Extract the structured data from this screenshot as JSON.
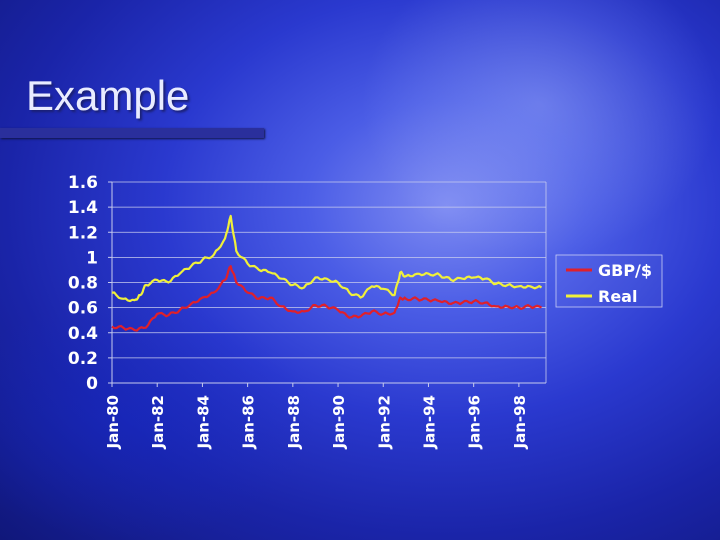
{
  "slide": {
    "title": "Example"
  },
  "chart_data": {
    "type": "line",
    "xlabel": "",
    "ylabel": "",
    "ylim": [
      0,
      1.6
    ],
    "yticks": [
      "0",
      "0.2",
      "0.4",
      "0.6",
      "0.8",
      "1",
      "1.2",
      "1.4",
      "1.6"
    ],
    "xticks": [
      "Jan-80",
      "Jan-82",
      "Jan-84",
      "Jan-86",
      "Jan-88",
      "Jan-90",
      "Jan-92",
      "Jan-94",
      "Jan-96",
      "Jan-98"
    ],
    "xtick_years": [
      1980,
      1982,
      1984,
      1986,
      1988,
      1990,
      1992,
      1994,
      1996,
      1998
    ],
    "xlim": [
      1980,
      1999.2
    ],
    "grid": "horizontal",
    "legend_placement": "right",
    "series": [
      {
        "name": "GBP/$",
        "color": "#e0202a",
        "points": [
          [
            1980,
            0.45
          ],
          [
            1980.5,
            0.44
          ],
          [
            1981,
            0.42
          ],
          [
            1981.5,
            0.44
          ],
          [
            1982,
            0.55
          ],
          [
            1982.5,
            0.54
          ],
          [
            1983,
            0.58
          ],
          [
            1983.5,
            0.63
          ],
          [
            1984,
            0.68
          ],
          [
            1984.5,
            0.72
          ],
          [
            1985,
            0.82
          ],
          [
            1985.25,
            0.93
          ],
          [
            1985.5,
            0.8
          ],
          [
            1986,
            0.72
          ],
          [
            1986.5,
            0.67
          ],
          [
            1987,
            0.68
          ],
          [
            1987.5,
            0.61
          ],
          [
            1988,
            0.57
          ],
          [
            1988.5,
            0.57
          ],
          [
            1989,
            0.62
          ],
          [
            1989.5,
            0.61
          ],
          [
            1990,
            0.58
          ],
          [
            1990.5,
            0.52
          ],
          [
            1991,
            0.53
          ],
          [
            1991.5,
            0.57
          ],
          [
            1992,
            0.55
          ],
          [
            1992.5,
            0.56
          ],
          [
            1992.75,
            0.68
          ],
          [
            1993,
            0.67
          ],
          [
            1993.5,
            0.67
          ],
          [
            1994,
            0.66
          ],
          [
            1994.5,
            0.65
          ],
          [
            1995,
            0.63
          ],
          [
            1995.5,
            0.64
          ],
          [
            1996,
            0.65
          ],
          [
            1996.5,
            0.64
          ],
          [
            1997,
            0.61
          ],
          [
            1997.5,
            0.61
          ],
          [
            1998,
            0.6
          ],
          [
            1998.5,
            0.61
          ],
          [
            1999,
            0.6
          ]
        ]
      },
      {
        "name": "Real",
        "color": "#f0f03a",
        "points": [
          [
            1980,
            0.72
          ],
          [
            1980.5,
            0.67
          ],
          [
            1981,
            0.66
          ],
          [
            1981.25,
            0.7
          ],
          [
            1981.5,
            0.78
          ],
          [
            1982,
            0.82
          ],
          [
            1982.5,
            0.8
          ],
          [
            1983,
            0.87
          ],
          [
            1983.5,
            0.93
          ],
          [
            1984,
            0.98
          ],
          [
            1984.5,
            1.02
          ],
          [
            1985,
            1.15
          ],
          [
            1985.25,
            1.33
          ],
          [
            1985.5,
            1.05
          ],
          [
            1986,
            0.95
          ],
          [
            1986.5,
            0.9
          ],
          [
            1987,
            0.88
          ],
          [
            1987.5,
            0.83
          ],
          [
            1988,
            0.78
          ],
          [
            1988.5,
            0.76
          ],
          [
            1989,
            0.84
          ],
          [
            1989.5,
            0.83
          ],
          [
            1990,
            0.8
          ],
          [
            1990.5,
            0.72
          ],
          [
            1991,
            0.68
          ],
          [
            1991.5,
            0.77
          ],
          [
            1992,
            0.75
          ],
          [
            1992.5,
            0.7
          ],
          [
            1992.75,
            0.88
          ],
          [
            1993,
            0.85
          ],
          [
            1993.5,
            0.87
          ],
          [
            1994,
            0.87
          ],
          [
            1994.5,
            0.86
          ],
          [
            1995,
            0.82
          ],
          [
            1995.5,
            0.83
          ],
          [
            1996,
            0.84
          ],
          [
            1996.5,
            0.83
          ],
          [
            1997,
            0.79
          ],
          [
            1997.5,
            0.78
          ],
          [
            1998,
            0.77
          ],
          [
            1998.5,
            0.77
          ],
          [
            1999,
            0.76
          ]
        ]
      }
    ]
  }
}
